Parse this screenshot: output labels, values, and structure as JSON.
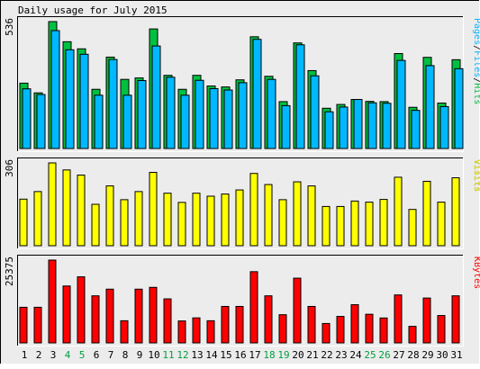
{
  "title": "Daily usage for July 2015",
  "colors": {
    "background": "#ececec",
    "hits": "#00c040",
    "files": "#00b8ff",
    "pages": "#00b8ff",
    "visits": "#ffff00",
    "kbytes": "#ff0000",
    "weekend_day": "#00a040",
    "weekday": "#000000"
  },
  "chart_data": [
    {
      "type": "bar",
      "panel": "hits-files-pages",
      "ylabel": "Pages/Files/Hits",
      "ylabel_parts": [
        "Pages",
        "Files",
        "Hits"
      ],
      "ymax_label": "536",
      "ylim": [
        0,
        536
      ],
      "categories": [
        "1",
        "2",
        "3",
        "4",
        "5",
        "6",
        "7",
        "8",
        "9",
        "10",
        "11",
        "12",
        "13",
        "14",
        "15",
        "16",
        "17",
        "18",
        "19",
        "20",
        "21",
        "22",
        "23",
        "24",
        "25",
        "26",
        "27",
        "28",
        "29",
        "30",
        "31"
      ],
      "series": [
        {
          "name": "Hits",
          "values": [
            276,
            235,
            536,
            451,
            421,
            250,
            386,
            292,
            298,
            505,
            309,
            250,
            309,
            264,
            260,
            290,
            472,
            305,
            198,
            446,
            329,
            170,
            186,
            207,
            199,
            198,
            401,
            174,
            385,
            192,
            375
          ]
        },
        {
          "name": "Files",
          "values": [
            252,
            228,
            498,
            417,
            398,
            225,
            376,
            225,
            287,
            433,
            301,
            225,
            288,
            253,
            247,
            278,
            461,
            292,
            181,
            438,
            307,
            155,
            175,
            207,
            193,
            191,
            372,
            161,
            350,
            177,
            337
          ]
        },
        {
          "name": "Pages",
          "values": [
            252,
            228,
            498,
            417,
            398,
            225,
            376,
            225,
            287,
            433,
            301,
            225,
            288,
            253,
            247,
            278,
            461,
            292,
            181,
            438,
            307,
            155,
            175,
            207,
            193,
            191,
            372,
            161,
            350,
            177,
            337
          ]
        }
      ]
    },
    {
      "type": "bar",
      "panel": "visits",
      "ylabel": "Visits",
      "ymax_label": "306",
      "ylim": [
        0,
        306
      ],
      "categories": [
        "1",
        "2",
        "3",
        "4",
        "5",
        "6",
        "7",
        "8",
        "9",
        "10",
        "11",
        "12",
        "13",
        "14",
        "15",
        "16",
        "17",
        "18",
        "19",
        "20",
        "21",
        "22",
        "23",
        "24",
        "25",
        "26",
        "27",
        "28",
        "29",
        "30",
        "31"
      ],
      "series": [
        {
          "name": "Visits",
          "values": [
            172,
            200,
            306,
            280,
            261,
            153,
            221,
            170,
            200,
            271,
            194,
            160,
            194,
            183,
            191,
            206,
            267,
            226,
            170,
            236,
            221,
            145,
            145,
            165,
            161,
            171,
            253,
            134,
            238,
            161,
            251
          ]
        }
      ]
    },
    {
      "type": "bar",
      "panel": "kbytes",
      "ylabel": "KBytes",
      "ymax_label": "25375",
      "ylim": [
        0,
        25375
      ],
      "categories": [
        "1",
        "2",
        "3",
        "4",
        "5",
        "6",
        "7",
        "8",
        "9",
        "10",
        "11",
        "12",
        "13",
        "14",
        "15",
        "16",
        "17",
        "18",
        "19",
        "20",
        "21",
        "22",
        "23",
        "24",
        "25",
        "26",
        "27",
        "28",
        "29",
        "30",
        "31"
      ],
      "series": [
        {
          "name": "KBytes",
          "values": [
            10920,
            10920,
            25375,
            17440,
            20250,
            14430,
            16470,
            6790,
            16470,
            17020,
            13490,
            6730,
            7670,
            6790,
            11180,
            11180,
            21830,
            14430,
            8640,
            19840,
            11180,
            5950,
            8120,
            11710,
            8780,
            7640,
            14700,
            5070,
            13750,
            8390,
            14430
          ]
        }
      ]
    }
  ]
}
